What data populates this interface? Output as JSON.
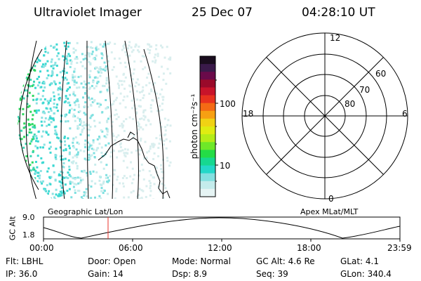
{
  "header": {
    "title": "Ultraviolet Imager",
    "date": "25 Dec 07",
    "time": "04:28:10 UT"
  },
  "colorbar": {
    "unit_label": "photon cm⁻²s⁻¹",
    "ticks": [
      "100",
      "10"
    ],
    "colors_top_to_bottom": [
      "#1a0d1e",
      "#3a1a4a",
      "#6a0a4a",
      "#9a0a2a",
      "#c8142a",
      "#e8321e",
      "#f46a14",
      "#f7a012",
      "#f0d214",
      "#dfec12",
      "#b4ec18",
      "#6ee828",
      "#24dc46",
      "#16d890",
      "#24d8c8",
      "#84e0e0",
      "#c4ecec",
      "#e6f4f4"
    ]
  },
  "polar_plot": {
    "top_label": "12",
    "bottom_label": "0",
    "left_label": "18",
    "right_label": "6",
    "ring_labels": [
      "60",
      "70",
      "80"
    ]
  },
  "timeline": {
    "ylabel": "GC Alt",
    "y_top": "9.0",
    "y_bottom": "1.8",
    "left_title": "Geographic Lat/Lon",
    "right_title": "Apex MLat/MLT",
    "x_ticks": [
      "00:00",
      "06:00",
      "12:00",
      "18:00",
      "23:59"
    ]
  },
  "status": {
    "flt": "Flt: LBHL",
    "door": "Door: Open",
    "mode": "Mode: Normal",
    "gc_alt": "GC Alt: 4.6 Re",
    "glat": "GLat:  4.1",
    "ip": "IP: 36.0",
    "gain": "Gain: 14",
    "dsp": "Dsp:   8.9",
    "seq": "Seq: 39",
    "glon": "GLon: 340.4"
  }
}
